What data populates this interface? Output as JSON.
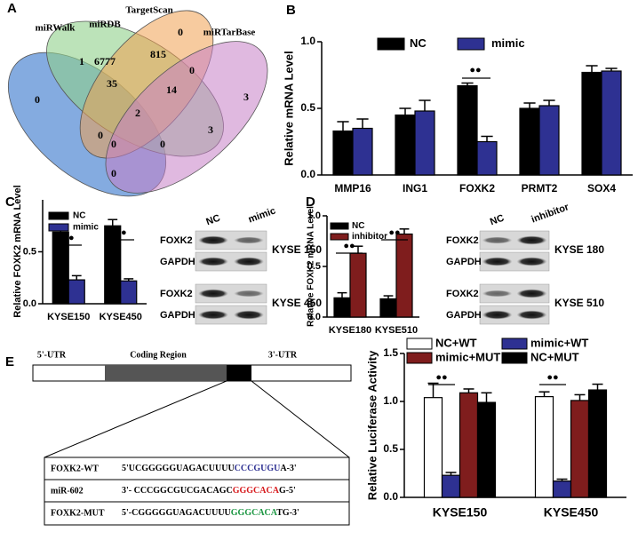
{
  "panels": [
    "A",
    "B",
    "C",
    "D",
    "E"
  ],
  "venn": {
    "sets": [
      "miRWalk",
      "miRDB",
      "TargetScan",
      "miRTarBase"
    ],
    "counts": [
      6777,
      815,
      0,
      1,
      35,
      14,
      0,
      3,
      0,
      2,
      3,
      0,
      0,
      0,
      0
    ]
  },
  "blots": [
    {
      "columns": [
        "NC",
        "mimic"
      ],
      "blocks": [
        {
          "cell_line": "KYSE 150",
          "rows": [
            "FOXK2",
            "GAPDH"
          ]
        },
        {
          "cell_line": "KYSE 450",
          "rows": [
            "FOXK2",
            "GAPDH"
          ]
        }
      ]
    },
    {
      "columns": [
        "NC",
        "inhibitor"
      ],
      "blocks": [
        {
          "cell_line": "KYSE 180",
          "rows": [
            "FOXK2",
            "GAPDH"
          ]
        },
        {
          "cell_line": "KYSE 510",
          "rows": [
            "FOXK2",
            "GAPDH"
          ]
        }
      ]
    }
  ],
  "gene_map": {
    "regions": [
      "5'-UTR",
      "Coding Region",
      "3'-UTR"
    ],
    "sequences": [
      {
        "name": "FOXK2-WT",
        "parts": [
          {
            "text": "5'UCGGGGGUAGACUUUU"
          },
          {
            "text": "CCCGUGU",
            "color": "#2e3192"
          },
          {
            "text": "A-3'"
          }
        ]
      },
      {
        "name": "miR-602",
        "parts": [
          {
            "text": "3'- CCCGGCGUCGACAGC"
          },
          {
            "text": "GGGCACA",
            "color": "#d7191c"
          },
          {
            "text": "G-5'"
          }
        ]
      },
      {
        "name": "FOXK2-MUT",
        "parts": [
          {
            "text": "5'-CGGGGGUAGACUUUU"
          },
          {
            "text": "GGGCACA",
            "color": "#1a9641"
          },
          {
            "text": "TG-3'"
          }
        ]
      }
    ]
  },
  "chart_data": [
    {
      "type": "bar",
      "y_label": "Relative mRNA Level",
      "categories": [
        "MMP16",
        "ING1",
        "FOXK2",
        "PRMT2",
        "SOX4"
      ],
      "series": [
        {
          "name": "NC",
          "color": "#000000",
          "values": [
            0.33,
            0.45,
            0.67,
            0.5,
            0.77
          ],
          "errors": [
            0.07,
            0.05,
            0.02,
            0.04,
            0.05
          ]
        },
        {
          "name": "mimic",
          "color": "#2e3192",
          "values": [
            0.35,
            0.48,
            0.25,
            0.52,
            0.78
          ],
          "errors": [
            0.07,
            0.08,
            0.04,
            0.04,
            0.02
          ]
        }
      ],
      "ylim": [
        0,
        1.0
      ],
      "yticks": [
        {
          "value": 0,
          "label": "0.0"
        },
        0.5,
        {
          "value": 1,
          "label": "1.0"
        }
      ],
      "annotations": [
        "●●"
      ]
    },
    {
      "type": "bar",
      "y_label": "Relative FOXK2 mRNA Level",
      "categories": [
        "KYSE150",
        "KYSE450"
      ],
      "series": [
        {
          "name": "NC",
          "color": "#000000",
          "values": [
            0.69,
            0.75
          ],
          "errors": [
            0.05,
            0.06
          ]
        },
        {
          "name": "mimic",
          "color": "#2e3192",
          "values": [
            0.23,
            0.22
          ],
          "errors": [
            0.04,
            0.02
          ]
        }
      ],
      "ylim": [
        0,
        1.0
      ],
      "yticks": [
        {
          "value": 0,
          "label": "0.0"
        },
        0.5
      ],
      "annotations": [
        "●●",
        "●●"
      ]
    },
    {
      "type": "bar",
      "y_label": "Relative FOXK2 mRNA Level",
      "categories": [
        "KYSE180",
        "KYSE510"
      ],
      "series": [
        {
          "name": "NC",
          "color": "#000000",
          "values": [
            0.19,
            0.18
          ],
          "errors": [
            0.05,
            0.03
          ]
        },
        {
          "name": "inhibitor",
          "color": "#7f1d1d",
          "values": [
            0.63,
            0.82
          ],
          "errors": [
            0.07,
            0.05
          ]
        }
      ],
      "ylim": [
        0,
        1.0
      ],
      "yticks": [
        {
          "value": 0,
          "label": "0.0"
        },
        0.5,
        {
          "value": 1,
          "label": "1.0"
        }
      ],
      "annotations": [
        "●●",
        "●●"
      ]
    },
    {
      "type": "bar",
      "y_label": "Relative Luciferase Activity",
      "categories": [
        "KYSE150",
        "KYSE450"
      ],
      "series": [
        {
          "name": "NC+WT",
          "color": "#ffffff",
          "values": [
            1.04,
            1.05
          ],
          "errors": [
            0.15,
            0.05
          ]
        },
        {
          "name": "mimic+WT",
          "color": "#2e3192",
          "values": [
            0.23,
            0.17
          ],
          "errors": [
            0.03,
            0.02
          ]
        },
        {
          "name": "mimic+MUT",
          "color": "#7f1d1d",
          "values": [
            1.09,
            1.01
          ],
          "errors": [
            0.04,
            0.06
          ]
        },
        {
          "name": "NC+MUT",
          "color": "#000000",
          "values": [
            0.99,
            1.12
          ],
          "errors": [
            0.1,
            0.06
          ]
        }
      ],
      "ylim": [
        0,
        1.5
      ],
      "yticks": [
        {
          "value": 0,
          "label": "0.0"
        },
        0.5,
        {
          "value": 1,
          "label": "1.0"
        },
        1.5
      ],
      "annotations": [
        "●●",
        "●●"
      ]
    }
  ]
}
